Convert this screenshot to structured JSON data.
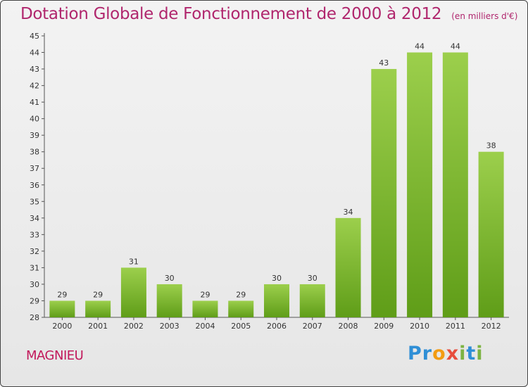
{
  "title": "Dotation Globale de Fonctionnement de 2000 à 2012",
  "subtitle": "(en milliers d'€)",
  "commune": "MAGNIEU",
  "logo": {
    "letters": [
      "P",
      "r",
      "o",
      "x",
      "i",
      "t",
      "i"
    ],
    "colors": [
      "#2f8fd6",
      "#2f8fd6",
      "#f39c12",
      "#e74c3c",
      "#7cb342",
      "#2f8fd6",
      "#7cb342"
    ]
  },
  "colors": {
    "bar_light": "#9ccf4c",
    "bar_dark": "#5f9d18",
    "title": "#b0266d"
  },
  "chart_data": {
    "type": "bar",
    "categories": [
      "2000",
      "2001",
      "2002",
      "2003",
      "2004",
      "2005",
      "2006",
      "2007",
      "2008",
      "2009",
      "2010",
      "2011",
      "2012"
    ],
    "values": [
      29,
      29,
      31,
      30,
      29,
      29,
      30,
      30,
      34,
      43,
      44,
      44,
      38
    ],
    "data_labels": [
      "29",
      "29",
      "31",
      "30",
      "29",
      "29",
      "30",
      "30",
      "34",
      "43",
      "44",
      "44",
      "38"
    ],
    "title": "Dotation Globale de Fonctionnement de 2000 à 2012",
    "subtitle": "(en milliers d'€)",
    "xlabel": "",
    "ylabel": "",
    "ylim": [
      28,
      45
    ],
    "yticks": [
      28,
      29,
      30,
      31,
      32,
      33,
      34,
      35,
      36,
      37,
      38,
      39,
      40,
      41,
      42,
      43,
      44,
      45
    ],
    "grid": false,
    "legend": "none"
  }
}
